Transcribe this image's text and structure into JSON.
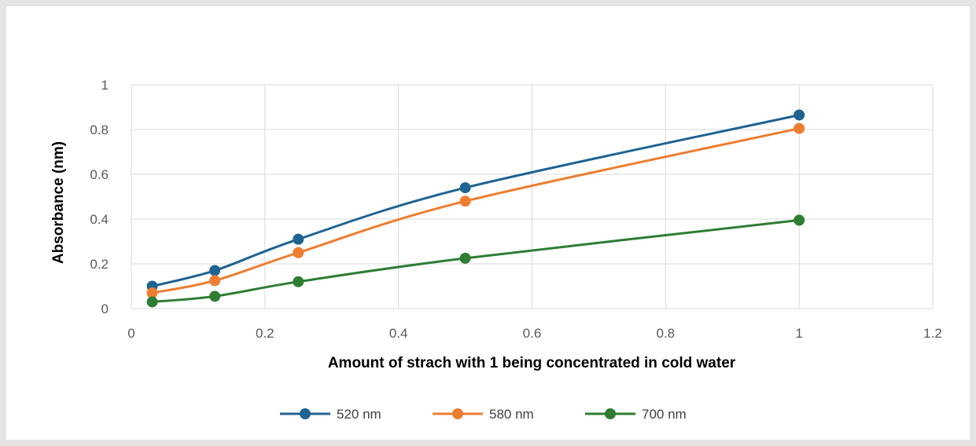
{
  "chart_data": {
    "type": "line",
    "title": "",
    "xlabel": "Amount of strach with 1 being concentrated in cold water",
    "ylabel": "Absorbance (nm)",
    "xlim": [
      0,
      1.2
    ],
    "ylim": [
      0,
      1
    ],
    "xticks": [
      "0",
      "0.2",
      "0.4",
      "0.6",
      "0.8",
      "1",
      "1.2"
    ],
    "yticks": [
      "0",
      "0.2",
      "0.4",
      "0.6",
      "0.8",
      "1"
    ],
    "grid": true,
    "smooth": true,
    "legend_position": "bottom",
    "x": [
      0.03125,
      0.125,
      0.25,
      0.5,
      1
    ],
    "series": [
      {
        "name": "520 nm",
        "color": "#1f6391",
        "values": [
          0.1,
          0.17,
          0.31,
          0.54,
          0.865
        ]
      },
      {
        "name": "580 nm",
        "color": "#ed7d31",
        "values": [
          0.07,
          0.125,
          0.25,
          0.48,
          0.805
        ]
      },
      {
        "name": "700 nm",
        "color": "#2e7d32",
        "values": [
          0.03,
          0.055,
          0.12,
          0.225,
          0.395
        ]
      }
    ]
  }
}
